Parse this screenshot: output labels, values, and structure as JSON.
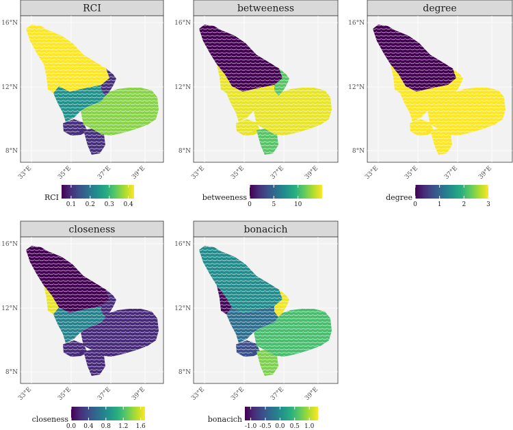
{
  "chart_data": [
    {
      "type": "heatmap",
      "title": "RCI",
      "legend": {
        "title": "RCI",
        "ticks": [
          0.1,
          0.2,
          0.3,
          0.4
        ],
        "limits": [
          0.05,
          0.43
        ]
      },
      "x_ticks": [
        "33°E",
        "35°E",
        "37°E",
        "39°E"
      ],
      "y_ticks": [
        "16°N",
        "12°N",
        "8°N"
      ],
      "regions": {
        "nw": 0.43,
        "west": 0.43,
        "center": 0.24,
        "sw": 0.1,
        "s": 0.1,
        "ne": 0.1,
        "east": 0.36
      }
    },
    {
      "type": "heatmap",
      "title": "betweeness",
      "legend": {
        "title": "betweeness",
        "ticks": [
          0,
          5,
          10
        ],
        "limits": [
          0,
          15
        ]
      },
      "x_ticks": [
        "33°E",
        "35°E",
        "37°E",
        "39°E"
      ],
      "y_ticks": [
        "16°N",
        "12°N",
        "8°N"
      ],
      "regions": {
        "nw": 0,
        "west": 14.5,
        "center": 14.5,
        "sw": 14.5,
        "s": 11,
        "ne": 11,
        "east": 14.5
      }
    },
    {
      "type": "heatmap",
      "title": "degree",
      "legend": {
        "title": "degree",
        "ticks": [
          0,
          1,
          2,
          3
        ],
        "limits": [
          0,
          3
        ]
      },
      "x_ticks": [
        "33°E",
        "35°E",
        "37°E",
        "39°E"
      ],
      "y_ticks": [
        "16°N",
        "12°N",
        "8°N"
      ],
      "regions": {
        "nw": 0,
        "west": 3,
        "center": 3,
        "sw": 3,
        "s": 3,
        "ne": 3,
        "east": 3
      }
    },
    {
      "type": "heatmap",
      "title": "closeness",
      "legend": {
        "title": "closeness",
        "ticks": [
          0.0,
          0.4,
          0.8,
          1.2,
          1.6
        ],
        "limits": [
          0,
          1.7
        ]
      },
      "x_ticks": [
        "33°E",
        "35°E",
        "37°E",
        "39°E"
      ],
      "y_ticks": [
        "16°N",
        "12°N",
        "8°N"
      ],
      "regions": {
        "nw": 0.0,
        "west": 1.65,
        "center": 0.75,
        "sw": 0.2,
        "s": 0.2,
        "ne": 0.2,
        "east": 0.2
      }
    },
    {
      "type": "heatmap",
      "title": "bonacich",
      "legend": {
        "title": "bonacich",
        "ticks": [
          -1.0,
          -0.5,
          0.0,
          0.5,
          1.0
        ],
        "limits": [
          -1.2,
          1.3
        ]
      },
      "x_ticks": [
        "33°E",
        "35°E",
        "37°E",
        "39°E"
      ],
      "y_ticks": [
        "16°N",
        "12°N",
        "8°N"
      ],
      "regions": {
        "nw": 0.0,
        "west": -1.15,
        "center": -0.3,
        "sw": -0.6,
        "s": 0.8,
        "ne": 1.25,
        "east": 0.55
      }
    }
  ]
}
